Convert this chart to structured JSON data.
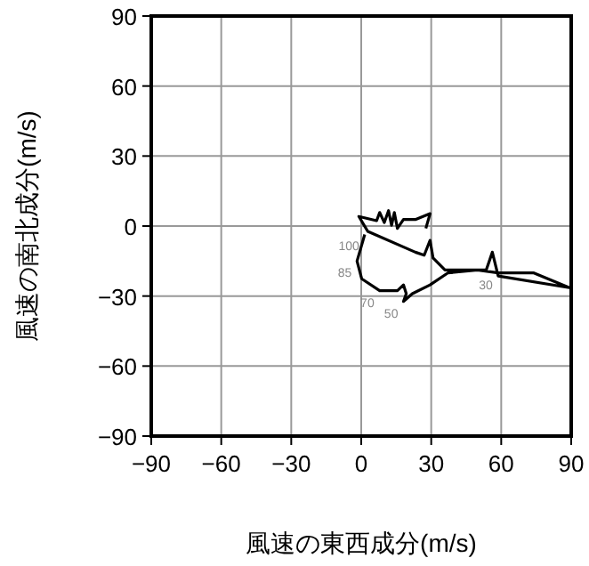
{
  "chart_data": {
    "type": "line",
    "xlabel": "風速の東西成分(m/s)",
    "ylabel": "風速の南北成分(m/s)",
    "x": [
      1.5,
      -1.8,
      0.2,
      7.9,
      15.5,
      18.1,
      19.3,
      18.1,
      21.9,
      29.5,
      37.1,
      49.8,
      58.7,
      74.0,
      89.2,
      58.7,
      56.2,
      53.6,
      35.9,
      30.8,
      29.5,
      27.0,
      23.2,
      2.8,
      -1.0,
      6.6,
      7.9,
      9.9,
      11.7,
      13.0,
      14.2,
      15.5,
      18.1,
      23.2,
      29.5,
      27.7
    ],
    "values": [
      -3.6,
      -15.0,
      -22.6,
      -27.7,
      -27.7,
      -25.2,
      -29.0,
      -32.3,
      -29.0,
      -25.2,
      -20.1,
      -18.8,
      -20.1,
      -20.1,
      -26.4,
      -21.4,
      -11.2,
      -18.8,
      -18.8,
      -13.7,
      -6.1,
      -12.5,
      -11.2,
      -2.3,
      4.1,
      2.3,
      5.8,
      1.5,
      6.6,
      0.3,
      5.8,
      -1.0,
      2.8,
      2.8,
      5.3,
      -1.0
    ],
    "color": "#000000",
    "marker": "none",
    "line_style": "solid",
    "grid": true,
    "xlim": [
      -90,
      90
    ],
    "ylim": [
      -90,
      90
    ],
    "xticks": [
      {
        "value": -90,
        "label": "−90"
      },
      {
        "value": -60,
        "label": "−60"
      },
      {
        "value": -30,
        "label": "−30"
      },
      0,
      30,
      60,
      90
    ],
    "yticks": [
      {
        "value": -90,
        "label": "−90"
      },
      {
        "value": -60,
        "label": "−60"
      },
      {
        "value": -30,
        "label": "−30"
      },
      0,
      30,
      60,
      90
    ],
    "annotations": [
      {
        "text": "100",
        "x": 1.5,
        "y": -3.6
      },
      {
        "text": "85",
        "x": -1.8,
        "y": -15.0
      },
      {
        "text": "70",
        "x": 7.9,
        "y": -27.7
      },
      {
        "text": "50",
        "x": 18.1,
        "y": -32.3
      },
      {
        "text": "30",
        "x": 58.7,
        "y": -20.1
      }
    ]
  }
}
